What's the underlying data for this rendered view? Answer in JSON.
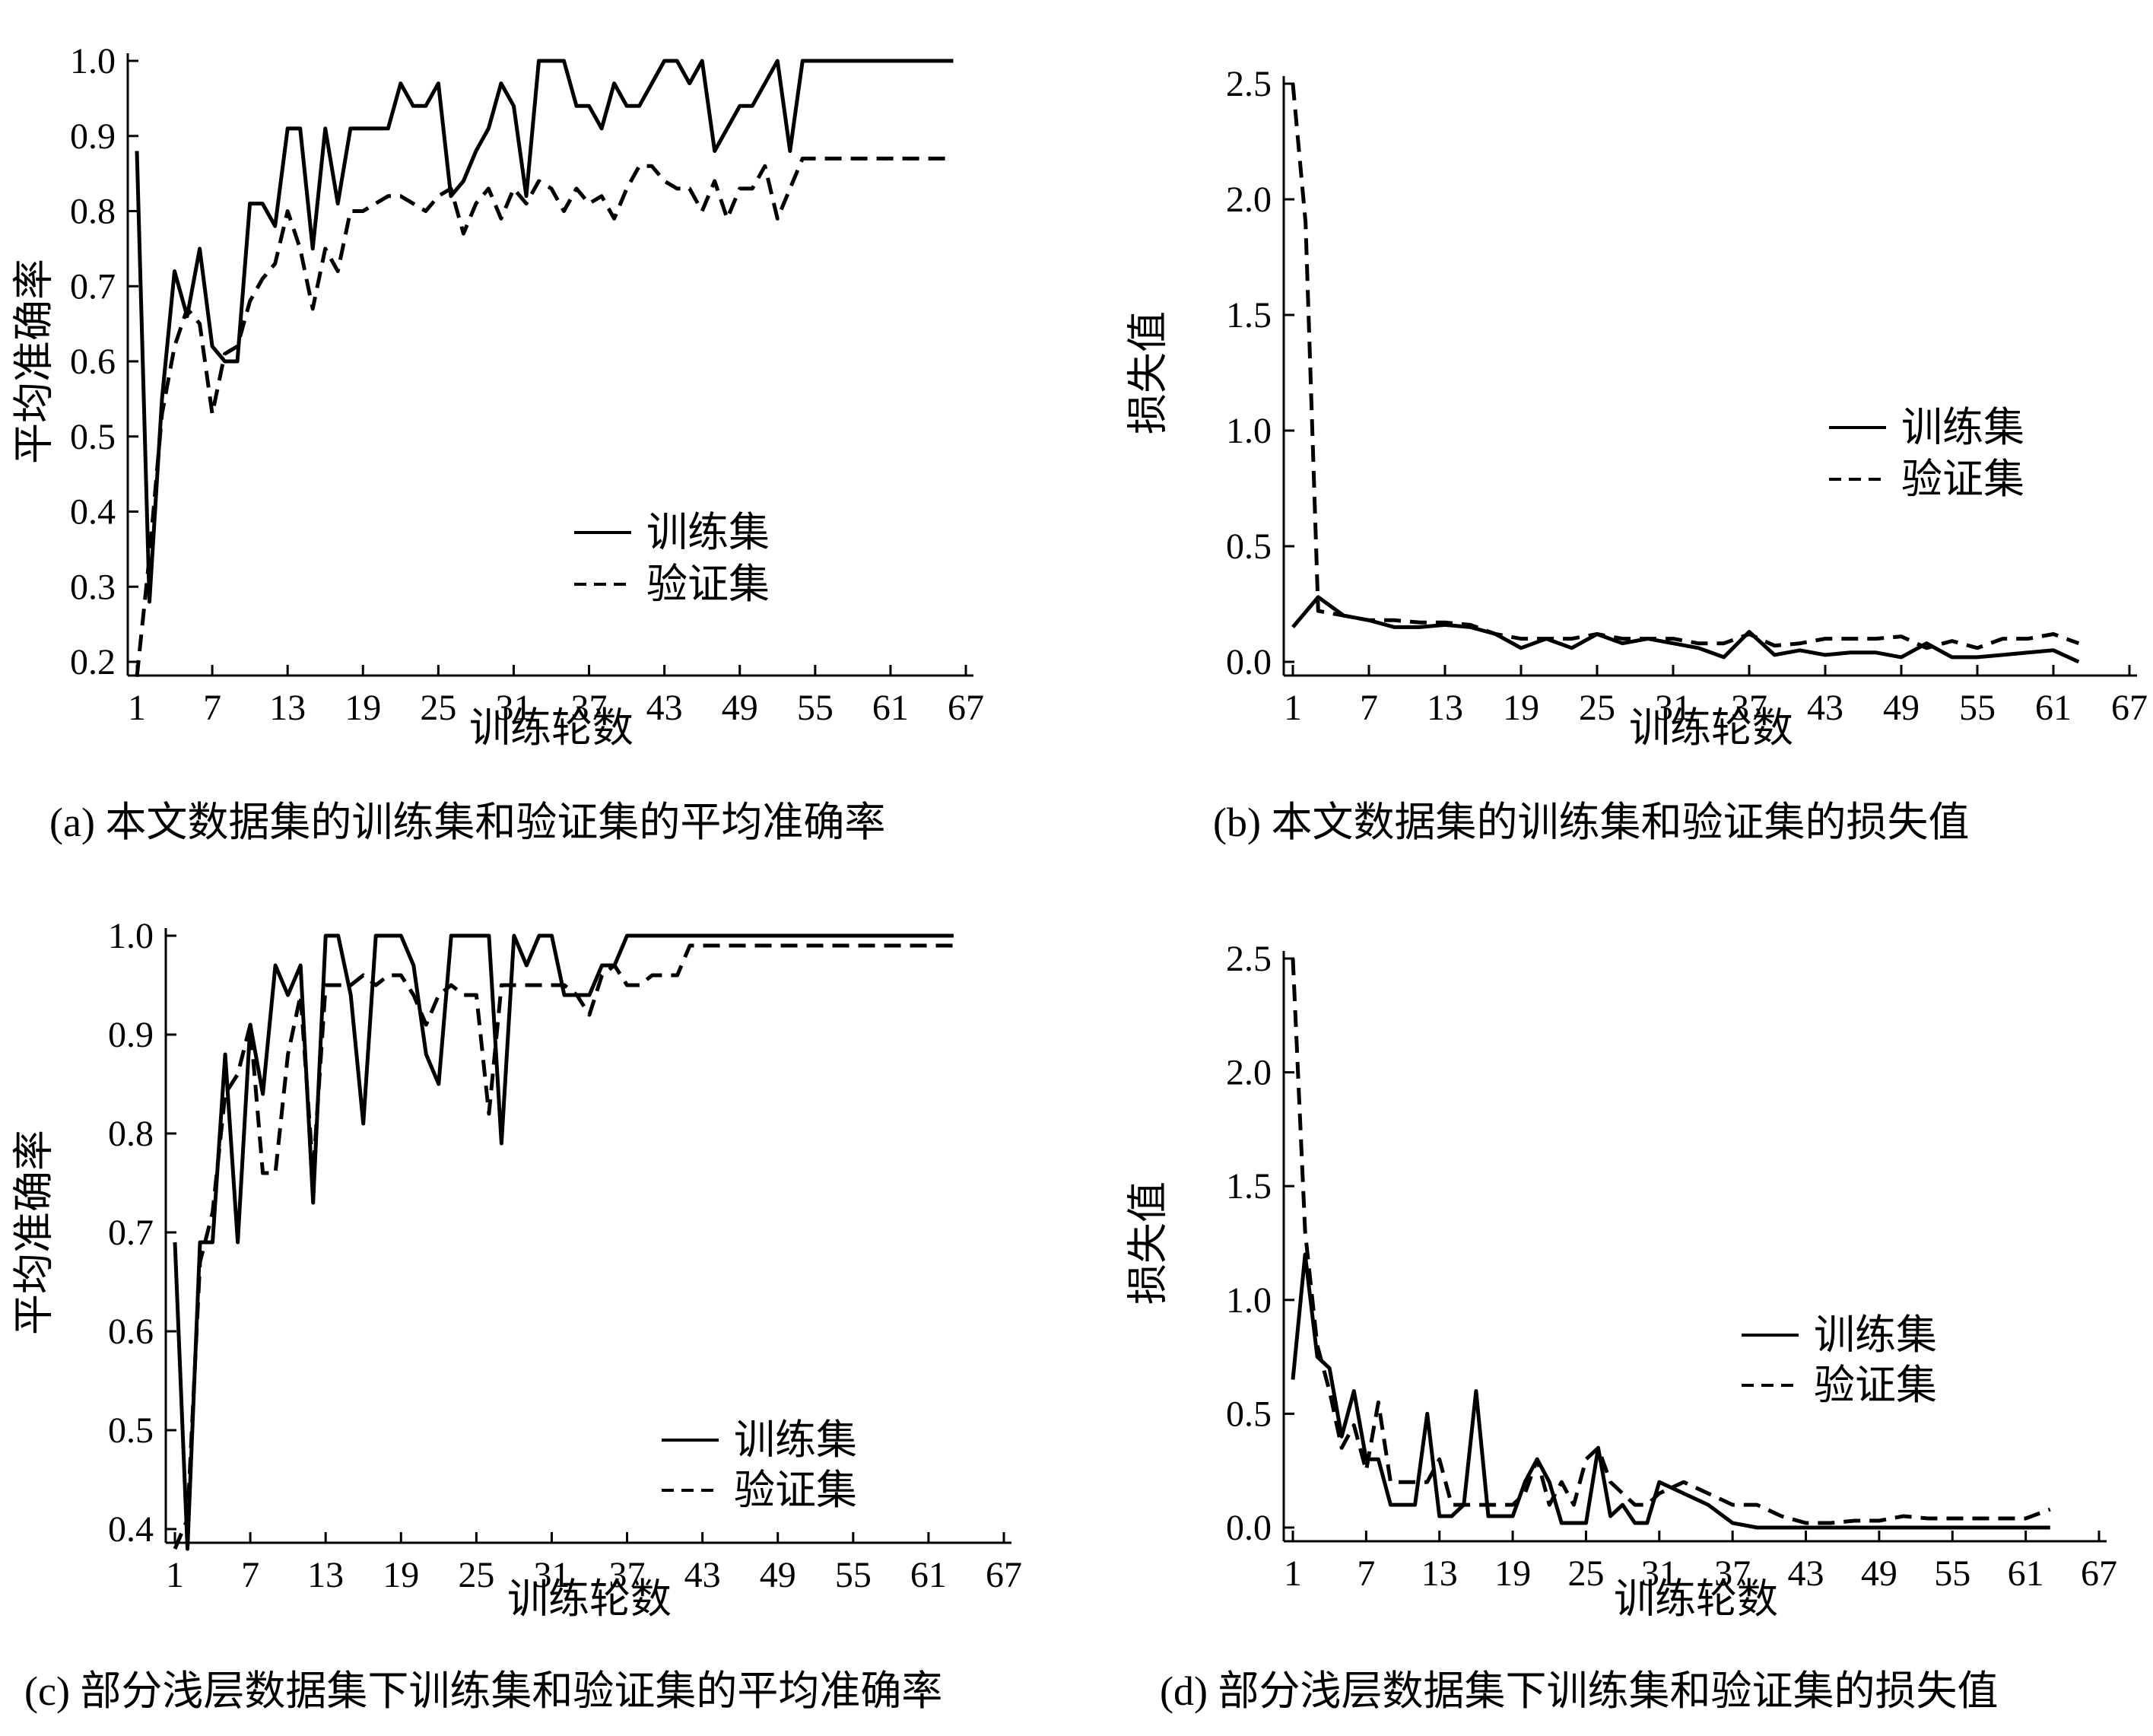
{
  "chart_data": [
    {
      "id": "a",
      "type": "line",
      "caption": "(a) 本文数据集的训练集和验证集的平均准确率",
      "xlabel": "训练轮数",
      "ylabel": "平均准确率",
      "xticks": [
        "1",
        "7",
        "13",
        "19",
        "25",
        "31",
        "37",
        "43",
        "49",
        "55",
        "61",
        "67"
      ],
      "yticks": [
        "0.2",
        "0.3",
        "0.4",
        "0.5",
        "0.6",
        "0.7",
        "0.8",
        "0.9",
        "1.0"
      ],
      "xlim": [
        1,
        67
      ],
      "ylim": [
        0.2,
        1.0
      ],
      "legend": "center-right",
      "series": [
        {
          "name": "训练集",
          "dash": "solid",
          "x": [
            1,
            2,
            3,
            4,
            5,
            6,
            7,
            8,
            9,
            10,
            11,
            12,
            13,
            14,
            15,
            16,
            17,
            18,
            19,
            20,
            21,
            22,
            23,
            24,
            25,
            26,
            27,
            28,
            29,
            30,
            31,
            32,
            33,
            34,
            35,
            36,
            37,
            38,
            39,
            40,
            41,
            42,
            43,
            44,
            45,
            46,
            47,
            48,
            49,
            50,
            51,
            52,
            53,
            54,
            55,
            56,
            57,
            58,
            59,
            60,
            61,
            62,
            63,
            64,
            65,
            66
          ],
          "y": [
            0.88,
            0.28,
            0.55,
            0.72,
            0.66,
            0.75,
            0.62,
            0.6,
            0.6,
            0.81,
            0.81,
            0.78,
            0.91,
            0.91,
            0.75,
            0.91,
            0.81,
            0.91,
            0.91,
            0.91,
            0.91,
            0.97,
            0.94,
            0.94,
            0.97,
            0.82,
            0.84,
            0.88,
            0.91,
            0.97,
            0.94,
            0.82,
            1.0,
            1.0,
            1.0,
            0.94,
            0.94,
            0.91,
            0.97,
            0.94,
            0.94,
            0.97,
            1.0,
            1.0,
            0.97,
            1.0,
            0.88,
            0.91,
            0.94,
            0.94,
            0.97,
            1.0,
            0.88,
            1.0,
            1.0,
            1.0,
            1.0,
            1.0,
            1.0,
            1.0,
            1.0,
            1.0,
            1.0,
            1.0,
            1.0,
            1.0
          ]
        },
        {
          "name": "验证集",
          "dash": "dashed",
          "x": [
            1,
            2,
            3,
            4,
            5,
            6,
            7,
            8,
            9,
            10,
            11,
            12,
            13,
            14,
            15,
            16,
            17,
            18,
            19,
            20,
            21,
            22,
            23,
            24,
            25,
            26,
            27,
            28,
            29,
            30,
            31,
            32,
            33,
            34,
            35,
            36,
            37,
            38,
            39,
            40,
            41,
            42,
            43,
            44,
            45,
            46,
            47,
            48,
            49,
            50,
            51,
            52,
            53,
            54,
            55,
            56,
            57,
            58,
            59,
            60,
            61,
            62,
            63,
            64,
            65,
            66
          ],
          "y": [
            0.18,
            0.34,
            0.53,
            0.62,
            0.67,
            0.65,
            0.53,
            0.61,
            0.62,
            0.68,
            0.71,
            0.73,
            0.8,
            0.75,
            0.67,
            0.75,
            0.72,
            0.8,
            0.8,
            0.81,
            0.82,
            0.82,
            0.81,
            0.8,
            0.82,
            0.83,
            0.77,
            0.81,
            0.83,
            0.79,
            0.83,
            0.81,
            0.84,
            0.83,
            0.8,
            0.83,
            0.81,
            0.82,
            0.79,
            0.83,
            0.86,
            0.86,
            0.84,
            0.83,
            0.83,
            0.8,
            0.84,
            0.79,
            0.83,
            0.83,
            0.86,
            0.79,
            0.83,
            0.87,
            0.87,
            0.87,
            0.87,
            0.87,
            0.87,
            0.87,
            0.87,
            0.87,
            0.87,
            0.87,
            0.87,
            0.87
          ]
        }
      ]
    },
    {
      "id": "b",
      "type": "line",
      "caption": "(b) 本文数据集的训练集和验证集的损失值",
      "xlabel": "训练轮数",
      "ylabel": "损失值",
      "xticks": [
        "1",
        "7",
        "13",
        "19",
        "25",
        "31",
        "37",
        "43",
        "49",
        "55",
        "61",
        "67"
      ],
      "yticks": [
        "0.0",
        "0.5",
        "1.0",
        "1.5",
        "2.0",
        "2.5"
      ],
      "xlim": [
        1,
        67
      ],
      "ylim": [
        0.0,
        2.5
      ],
      "legend": "center-right",
      "series": [
        {
          "name": "训练集",
          "dash": "solid",
          "x": [
            1,
            3,
            5,
            7,
            9,
            11,
            13,
            15,
            17,
            19,
            21,
            23,
            25,
            27,
            29,
            31,
            33,
            35,
            37,
            39,
            41,
            43,
            45,
            47,
            49,
            51,
            53,
            55,
            57,
            59,
            61,
            63
          ],
          "y": [
            0.15,
            0.28,
            0.2,
            0.18,
            0.15,
            0.15,
            0.16,
            0.15,
            0.12,
            0.06,
            0.1,
            0.06,
            0.12,
            0.08,
            0.1,
            0.08,
            0.06,
            0.02,
            0.13,
            0.03,
            0.05,
            0.03,
            0.04,
            0.04,
            0.02,
            0.08,
            0.02,
            0.02,
            0.03,
            0.04,
            0.05,
            0.0
          ]
        },
        {
          "name": "验证集",
          "dash": "dashed",
          "x": [
            1,
            2,
            3,
            5,
            7,
            9,
            11,
            13,
            15,
            17,
            19,
            21,
            23,
            25,
            27,
            29,
            31,
            33,
            35,
            37,
            39,
            41,
            43,
            45,
            47,
            49,
            51,
            53,
            55,
            57,
            59,
            61,
            63
          ],
          "y": [
            2.5,
            1.9,
            0.22,
            0.2,
            0.18,
            0.18,
            0.17,
            0.17,
            0.16,
            0.12,
            0.1,
            0.1,
            0.1,
            0.12,
            0.1,
            0.1,
            0.1,
            0.08,
            0.08,
            0.12,
            0.07,
            0.08,
            0.1,
            0.1,
            0.1,
            0.11,
            0.06,
            0.09,
            0.06,
            0.1,
            0.1,
            0.12,
            0.08
          ]
        }
      ]
    },
    {
      "id": "c",
      "type": "line",
      "caption": "(c) 部分浅层数据集下训练集和验证集的平均准确率",
      "xlabel": "训练轮数",
      "ylabel": "平均准确率",
      "xticks": [
        "1",
        "7",
        "13",
        "19",
        "25",
        "31",
        "37",
        "43",
        "49",
        "55",
        "61",
        "67"
      ],
      "yticks": [
        "0.4",
        "0.5",
        "0.6",
        "0.7",
        "0.8",
        "0.9",
        "1.0"
      ],
      "xlim": [
        1,
        67
      ],
      "ylim": [
        0.4,
        1.0
      ],
      "legend": "bottom-right",
      "series": [
        {
          "name": "训练集",
          "dash": "solid",
          "x": [
            1,
            2,
            3,
            4,
            5,
            6,
            7,
            8,
            9,
            10,
            11,
            12,
            13,
            14,
            15,
            16,
            17,
            18,
            19,
            20,
            21,
            22,
            23,
            24,
            25,
            26,
            27,
            28,
            29,
            30,
            31,
            32,
            33,
            34,
            35,
            36,
            37,
            38,
            39,
            40,
            41,
            42,
            43,
            44,
            45,
            46,
            47,
            48,
            49,
            50,
            51,
            52,
            53,
            54,
            55,
            56,
            57,
            58,
            59,
            60,
            61,
            62,
            63
          ],
          "y": [
            0.69,
            0.38,
            0.69,
            0.69,
            0.88,
            0.69,
            0.91,
            0.84,
            0.97,
            0.94,
            0.97,
            0.73,
            1.0,
            1.0,
            0.94,
            0.81,
            1.0,
            1.0,
            1.0,
            0.97,
            0.88,
            0.85,
            1.0,
            1.0,
            1.0,
            1.0,
            0.79,
            1.0,
            0.97,
            1.0,
            1.0,
            0.94,
            0.94,
            0.94,
            0.97,
            0.97,
            1.0,
            1.0,
            1.0,
            1.0,
            1.0,
            1.0,
            1.0,
            1.0,
            1.0,
            1.0,
            1.0,
            1.0,
            1.0,
            1.0,
            1.0,
            1.0,
            1.0,
            1.0,
            1.0,
            1.0,
            1.0,
            1.0,
            1.0,
            1.0,
            1.0,
            1.0,
            1.0
          ]
        },
        {
          "name": "验证集",
          "dash": "dashed",
          "x": [
            1,
            2,
            3,
            4,
            5,
            6,
            7,
            8,
            9,
            10,
            11,
            12,
            13,
            14,
            15,
            16,
            17,
            18,
            19,
            20,
            21,
            22,
            23,
            24,
            25,
            26,
            27,
            28,
            29,
            30,
            31,
            32,
            33,
            34,
            35,
            36,
            37,
            38,
            39,
            40,
            41,
            42,
            43,
            44,
            45,
            46,
            47,
            48,
            49,
            50,
            51,
            52,
            53,
            54,
            55,
            56,
            57,
            58,
            59,
            60,
            61,
            62,
            63
          ],
          "y": [
            0.38,
            0.41,
            0.67,
            0.72,
            0.84,
            0.86,
            0.91,
            0.76,
            0.76,
            0.88,
            0.94,
            0.76,
            0.95,
            0.95,
            0.95,
            0.96,
            0.95,
            0.96,
            0.96,
            0.94,
            0.91,
            0.94,
            0.95,
            0.94,
            0.94,
            0.82,
            0.95,
            0.95,
            0.95,
            0.95,
            0.95,
            0.95,
            0.94,
            0.92,
            0.96,
            0.97,
            0.95,
            0.95,
            0.96,
            0.96,
            0.96,
            0.99,
            0.99,
            0.99,
            0.99,
            0.99,
            0.99,
            0.99,
            0.99,
            0.99,
            0.99,
            0.99,
            0.99,
            0.99,
            0.99,
            0.99,
            0.99,
            0.99,
            0.99,
            0.99,
            0.99,
            0.99,
            0.99
          ]
        }
      ]
    },
    {
      "id": "d",
      "type": "line",
      "caption": "(d) 部分浅层数据集下训练集和验证集的损失值",
      "xlabel": "训练轮数",
      "ylabel": "损失值",
      "xticks": [
        "1",
        "7",
        "13",
        "19",
        "25",
        "31",
        "37",
        "43",
        "49",
        "55",
        "61",
        "67"
      ],
      "yticks": [
        "0.0",
        "0.5",
        "1.0",
        "1.5",
        "2.0",
        "2.5"
      ],
      "xlim": [
        1,
        67
      ],
      "ylim": [
        0.0,
        2.5
      ],
      "legend": "center-right",
      "series": [
        {
          "name": "训练集",
          "dash": "solid",
          "x": [
            1,
            2,
            3,
            4,
            5,
            6,
            7,
            8,
            9,
            10,
            11,
            12,
            13,
            14,
            15,
            16,
            17,
            18,
            19,
            20,
            21,
            22,
            23,
            24,
            25,
            26,
            27,
            28,
            29,
            30,
            31,
            33,
            35,
            37,
            39,
            41,
            43,
            45,
            47,
            49,
            51,
            53,
            55,
            57,
            59,
            61,
            63
          ],
          "y": [
            0.65,
            1.2,
            0.75,
            0.7,
            0.4,
            0.6,
            0.3,
            0.3,
            0.1,
            0.1,
            0.1,
            0.5,
            0.05,
            0.05,
            0.1,
            0.6,
            0.05,
            0.05,
            0.05,
            0.2,
            0.3,
            0.2,
            0.02,
            0.02,
            0.02,
            0.35,
            0.05,
            0.1,
            0.02,
            0.02,
            0.2,
            0.15,
            0.1,
            0.02,
            0.0,
            0.0,
            0.0,
            0.0,
            0.0,
            0.0,
            0.0,
            0.0,
            0.0,
            0.0,
            0.0,
            0.0,
            0.0
          ]
        },
        {
          "name": "验证集",
          "dash": "dashed",
          "x": [
            1,
            2,
            3,
            4,
            5,
            6,
            7,
            8,
            9,
            10,
            11,
            12,
            13,
            14,
            15,
            16,
            17,
            18,
            19,
            20,
            21,
            22,
            23,
            24,
            25,
            26,
            27,
            28,
            29,
            30,
            31,
            33,
            35,
            37,
            39,
            41,
            43,
            45,
            47,
            49,
            51,
            53,
            55,
            57,
            59,
            61,
            63
          ],
          "y": [
            2.5,
            1.3,
            0.8,
            0.6,
            0.35,
            0.45,
            0.25,
            0.55,
            0.2,
            0.2,
            0.2,
            0.2,
            0.3,
            0.1,
            0.1,
            0.1,
            0.1,
            0.1,
            0.1,
            0.15,
            0.3,
            0.1,
            0.2,
            0.1,
            0.3,
            0.35,
            0.2,
            0.15,
            0.1,
            0.1,
            0.15,
            0.2,
            0.15,
            0.1,
            0.1,
            0.05,
            0.02,
            0.02,
            0.03,
            0.03,
            0.05,
            0.04,
            0.04,
            0.04,
            0.04,
            0.04,
            0.08
          ]
        }
      ]
    }
  ]
}
